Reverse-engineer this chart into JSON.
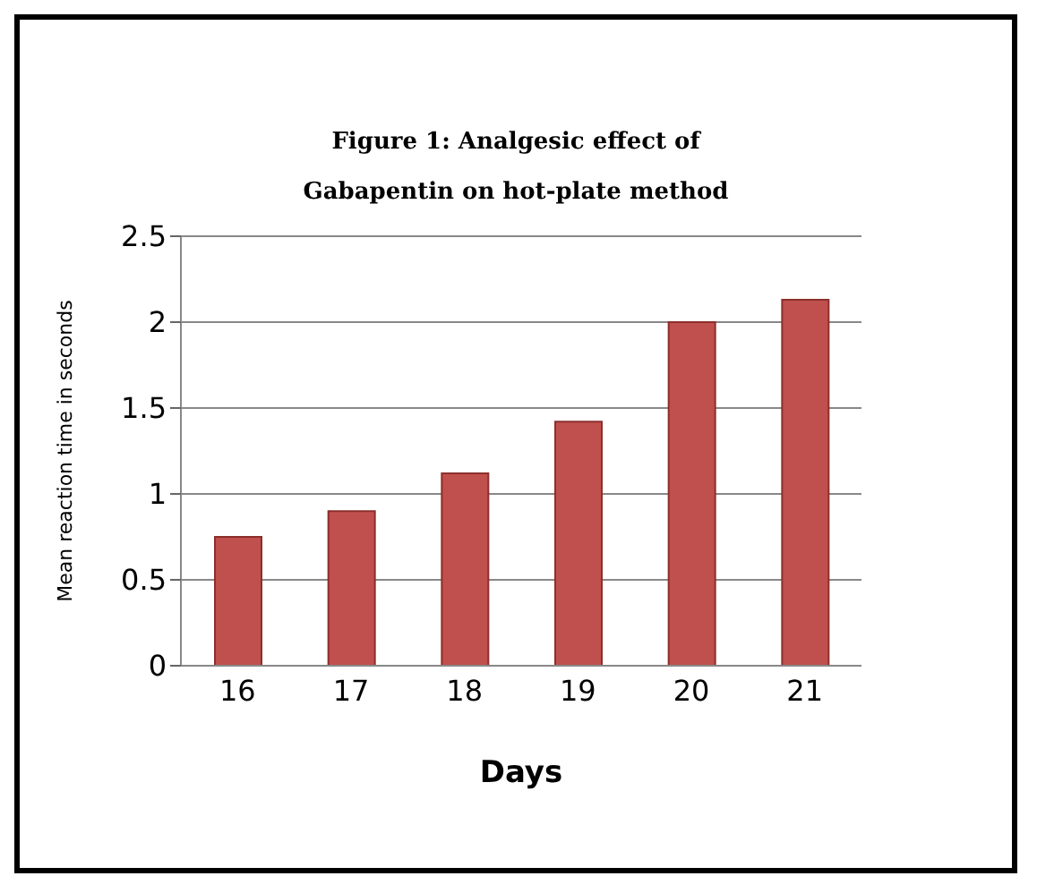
{
  "chart_data": {
    "type": "bar",
    "title": "Figure 1: Analgesic effect of Gabapentin on hot-plate method",
    "xlabel": "Days",
    "ylabel": "Mean reaction time in seconds",
    "categories": [
      "16",
      "17",
      "18",
      "19",
      "20",
      "21"
    ],
    "values": [
      0.75,
      0.9,
      1.12,
      1.42,
      2.0,
      2.13
    ],
    "color": "#c0504d",
    "ylim": [
      0,
      2.5
    ],
    "yticks": [
      0,
      0.5,
      1,
      1.5,
      2,
      2.5
    ],
    "grid": "y"
  }
}
